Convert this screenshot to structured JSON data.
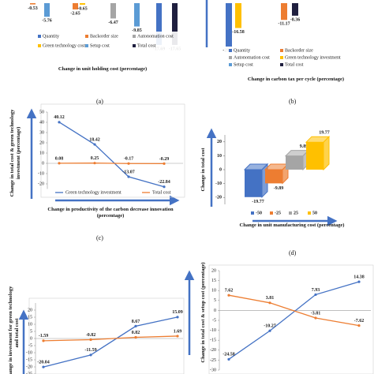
{
  "chart_data": [
    {
      "type": "bar",
      "xlabel": "Change in unit holding cost (percentage)",
      "caption": "(a)",
      "legend": [
        {
          "name": "Quantity",
          "color": "#4472c4"
        },
        {
          "name": "Backorder size",
          "color": "#ed7d31"
        },
        {
          "name": "Autonomation cost",
          "color": "#a5a5a5"
        },
        {
          "name": "Green technology cost",
          "color": "#ffc000"
        },
        {
          "name": "Setup cost",
          "color": "#5b9bd5"
        },
        {
          "name": "Total cost",
          "color": "#1f1f3f"
        }
      ],
      "values": [
        -0.53,
        -5.76,
        -2.65,
        -0.65,
        -6.47,
        -9.85,
        -17.69,
        -17.65
      ],
      "colors": [
        "#ed7d31",
        "#5b9bd5",
        "#ed7d31",
        "#ffc000",
        "#a5a5a5",
        "#5b9bd5",
        "#4472c4",
        "#1f1f3f"
      ]
    },
    {
      "type": "bar",
      "xlabel": "Change in carbon tax per cycle (percentage)",
      "caption": "(b)",
      "legend": [
        {
          "name": "Quantity",
          "color": "#4472c4"
        },
        {
          "name": "Backorder size",
          "color": "#ed7d31"
        },
        {
          "name": "Autonomation cost",
          "color": "#a5a5a5"
        },
        {
          "name": "Green technology investment",
          "color": "#ffc000"
        },
        {
          "name": "Setup cost",
          "color": "#5b9bd5"
        },
        {
          "name": "Total cost",
          "color": "#1f1f3f"
        }
      ],
      "values": [
        -28.95,
        -16.58,
        -11.17,
        -8.36
      ],
      "colors": [
        "#4472c4",
        "#ffc000",
        "#ed7d31",
        "#1f1f3f"
      ]
    },
    {
      "type": "line",
      "ylabel": "Change in total cost & green technology investment (percentage)",
      "xlabel": "Change in productivity of the carbon decrease innovation (percentage)",
      "caption": "(c)",
      "categories": [
        null,
        null,
        null,
        null
      ],
      "series": [
        {
          "name": "Green technology investment",
          "color": "#4472c4",
          "values": [
            40.12,
            18.42,
            -13.07,
            -22.84
          ]
        },
        {
          "name": "Total cost",
          "color": "#ed7d31",
          "values": [
            0.08,
            0.25,
            -0.17,
            -0.29
          ]
        }
      ],
      "ylim": [
        -25,
        50
      ],
      "yticks": [
        -20,
        -10,
        0,
        10,
        20,
        30,
        40,
        50
      ]
    },
    {
      "type": "bar3d",
      "ylabel": "Change in total cost",
      "xlabel": "Change in unit manufacturing cost (percentage)",
      "caption": "(d)",
      "categories": [
        "-50",
        "-25",
        "25",
        "50"
      ],
      "values": [
        -19.77,
        -9.89,
        9.89,
        19.77
      ],
      "colors": [
        "#4472c4",
        "#ed7d31",
        "#a5a5a5",
        "#ffc000"
      ],
      "ylim": [
        -25,
        25
      ],
      "yticks": [
        -20,
        -10,
        0,
        10,
        20
      ]
    },
    {
      "type": "line",
      "ylabel": "Change in investment for green technology and total cost",
      "categories": [
        null,
        null,
        null,
        null
      ],
      "series": [
        {
          "name": "Green technology investment",
          "color": "#4472c4",
          "values": [
            -20.04,
            -11.59,
            8.67,
            15.09
          ]
        },
        {
          "name": "Total cost",
          "color": "#ed7d31",
          "values": [
            -1.59,
            -0.82,
            0.82,
            1.69
          ]
        }
      ],
      "ylim": [
        -25,
        25
      ],
      "yticks": [
        -25,
        -20,
        -15,
        -10,
        -5,
        0,
        5,
        10,
        15,
        20
      ]
    },
    {
      "type": "line",
      "ylabel": "Change in total cost & setup cost (percentage)",
      "categories": [
        null,
        null,
        null,
        null
      ],
      "series": [
        {
          "name": "Total cost",
          "color": "#4472c4",
          "values": [
            -24.58,
            -10.27,
            7.93,
            14.38
          ]
        },
        {
          "name": "Setup cost",
          "color": "#ed7d31",
          "values": [
            7.62,
            3.81,
            -3.81,
            -7.62
          ]
        }
      ],
      "ylim": [
        -30,
        20
      ],
      "yticks": [
        -30,
        -25,
        -20,
        -15,
        -10,
        -5,
        0,
        5,
        10,
        15,
        20
      ]
    }
  ]
}
